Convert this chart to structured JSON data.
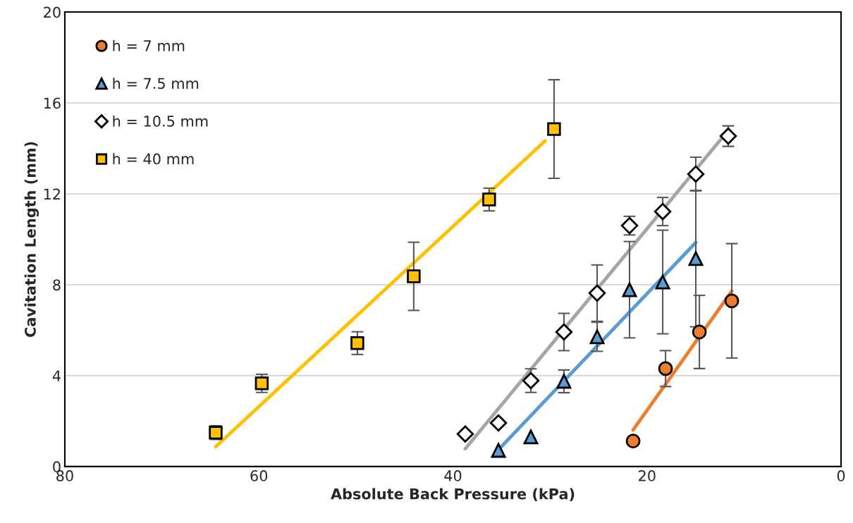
{
  "chart_data": {
    "type": "scatter",
    "xlabel": "Absolute Back Pressure (kPa)",
    "ylabel": "Cavitation Length (mm)",
    "xlim": [
      80,
      0
    ],
    "xticks": [
      80,
      60,
      40,
      20,
      0
    ],
    "ylim": [
      0,
      20
    ],
    "yticks": [
      0,
      4,
      8,
      12,
      16,
      20
    ],
    "grid": "y",
    "legend": "top left",
    "series": [
      {
        "name": "h = 7 mm",
        "marker": "circle",
        "color": "#ed7d31",
        "x": [
          21.43,
          18.09,
          14.6,
          11.26
        ],
        "values": [
          1.12,
          4.31,
          5.92,
          7.29
        ],
        "errors": [
          null,
          0.79,
          1.61,
          2.52
        ]
      },
      {
        "name": "h = 7.5 mm",
        "marker": "triangle",
        "color": "#5b9bd5",
        "x": [
          35.31,
          31.97,
          28.56,
          25.14,
          21.8,
          18.38,
          14.97
        ],
        "values": [
          0.71,
          1.3,
          3.75,
          5.71,
          7.78,
          8.12,
          9.15
        ],
        "errors": [
          null,
          null,
          0.5,
          0.64,
          2.12,
          2.28,
          3.0
        ]
      },
      {
        "name": "h = 10.5 mm",
        "marker": "diamond",
        "color": "#ffffff",
        "x": [
          38.73,
          35.31,
          31.97,
          28.56,
          25.14,
          21.8,
          18.38,
          14.97,
          11.63
        ],
        "values": [
          1.43,
          1.92,
          3.78,
          5.92,
          7.63,
          10.6,
          11.22,
          12.87,
          14.54
        ],
        "errors": [
          null,
          null,
          0.52,
          0.82,
          1.24,
          0.41,
          0.62,
          0.74,
          0.45
        ]
      },
      {
        "name": "h = 40 mm",
        "marker": "square",
        "color": "#ffc000",
        "x": [
          64.45,
          59.7,
          49.85,
          44.04,
          36.27,
          29.58
        ],
        "values": [
          1.49,
          3.66,
          5.43,
          8.37,
          11.75,
          14.85
        ],
        "errors": [
          0.3,
          0.4,
          0.5,
          1.5,
          0.5,
          2.17
        ]
      },
      {
        "type": "line",
        "color": "#ed7d31",
        "x": [
          21.43,
          11.26
        ],
        "values": [
          1.61,
          7.72
        ]
      },
      {
        "type": "line",
        "color": "#5b9bd5",
        "x": [
          35.31,
          14.97
        ],
        "values": [
          0.74,
          9.86
        ]
      },
      {
        "type": "line",
        "color": "#a5a5a5",
        "x": [
          38.73,
          11.63
        ],
        "values": [
          0.78,
          14.79
        ]
      },
      {
        "type": "line",
        "color": "#ffc000",
        "x": [
          64.45,
          30.5
        ],
        "values": [
          0.87,
          14.33
        ]
      }
    ]
  }
}
